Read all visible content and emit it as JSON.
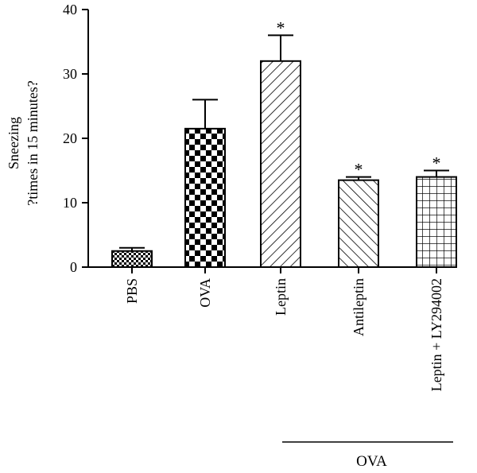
{
  "chart_data": {
    "type": "bar",
    "categories": [
      "PBS",
      "OVA",
      "Leptin",
      "Antileptin",
      "Leptin + LY294002"
    ],
    "values": [
      2.5,
      21.5,
      32,
      13.5,
      14
    ],
    "errors": [
      0.5,
      4.5,
      4,
      0.5,
      1
    ],
    "significant": [
      "",
      "",
      "*",
      "*",
      "*"
    ],
    "patterns": [
      "small-checker",
      "large-checker",
      "diag-right",
      "diag-left",
      "grid"
    ],
    "ylabel_line1": "Sneezing",
    "ylabel_line2": "?times in 15 minutes?",
    "yticks": [
      "0",
      "10",
      "20",
      "30",
      "40"
    ],
    "ylim": [
      0,
      40
    ],
    "group_label": "OVA",
    "group_span": [
      2,
      4
    ]
  }
}
